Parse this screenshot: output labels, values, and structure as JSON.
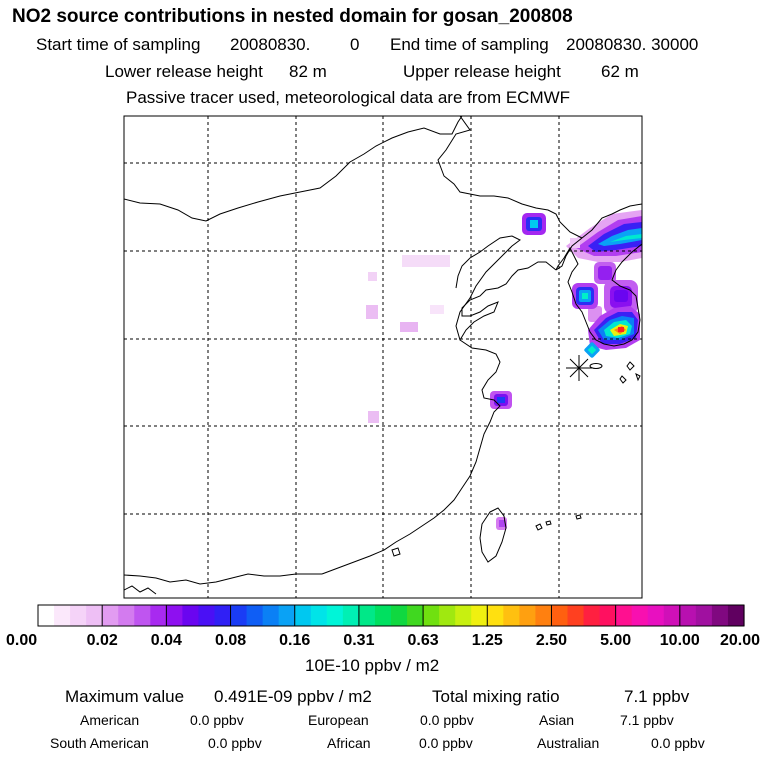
{
  "title": "NO2 source contributions in nested domain for gosan_200808",
  "sampling": {
    "start_label": "Start time of sampling",
    "start_value": "20080830.",
    "start_hour": "0",
    "end_label": "End time of sampling",
    "end_value": "20080830. 30000"
  },
  "release": {
    "lower_label": "Lower release height",
    "lower_value": "82 m",
    "upper_label": "Upper release height",
    "upper_value": "62 m"
  },
  "note": "Passive tracer used, meteorological data are from ECMWF",
  "colorbar": {
    "unit": "10E-10 ppbv / m2",
    "ticks": [
      "0.00",
      "0.02",
      "0.04",
      "0.08",
      "0.16",
      "0.31",
      "0.63",
      "1.25",
      "2.50",
      "5.00",
      "10.00",
      "20.00"
    ],
    "colors": [
      "#ffffff",
      "#fbe8fb",
      "#f5d3f8",
      "#eebff5",
      "#e29cf1",
      "#d37bef",
      "#bf55f0",
      "#a82af0",
      "#8e10f0",
      "#6a05f0",
      "#4a10f5",
      "#3020f5",
      "#1a3cf5",
      "#0f5ef5",
      "#0b80f5",
      "#0aa2f5",
      "#00c8f0",
      "#00e4e8",
      "#00f5d8",
      "#00f0b4",
      "#00e888",
      "#00e060",
      "#10d840",
      "#40d820",
      "#70e010",
      "#a0e810",
      "#c8f010",
      "#f0f010",
      "#ffe010",
      "#ffc010",
      "#ffa010",
      "#ff8010",
      "#ff6010",
      "#ff4020",
      "#ff2040",
      "#ff1060",
      "#ff1090",
      "#f810b0",
      "#e810c0",
      "#d010b8",
      "#b810b0",
      "#a010a0",
      "#800880",
      "#600060"
    ]
  },
  "stats": {
    "max_label": "Maximum value",
    "max_value": "0.491E-09 ppbv / m2",
    "total_label": "Total mixing ratio",
    "total_value": "7.1 ppbv"
  },
  "regions": [
    {
      "name": "American",
      "value": "0.0 ppbv"
    },
    {
      "name": "European",
      "value": "0.0 ppbv"
    },
    {
      "name": "Asian",
      "value": "7.1 ppbv"
    },
    {
      "name": "South American",
      "value": "0.0 ppbv"
    },
    {
      "name": "African",
      "value": "0.0 ppbv"
    },
    {
      "name": "Australian",
      "value": "0.0 ppbv"
    }
  ],
  "map": {
    "receptor_marker": "asterisk",
    "source_blobs": [
      {
        "name": "korea-south",
        "peak": "red"
      },
      {
        "name": "korea-central",
        "peak": "blue"
      },
      {
        "name": "seoul-area",
        "peak": "cyan"
      },
      {
        "name": "manchuria-northeast",
        "peak": "cyan"
      },
      {
        "name": "northeast-point",
        "peak": "blue"
      },
      {
        "name": "shanghai",
        "peak": "blue"
      },
      {
        "name": "taiwan",
        "peak": "purple"
      }
    ]
  }
}
